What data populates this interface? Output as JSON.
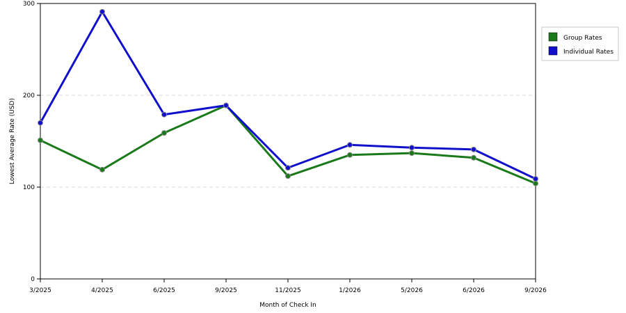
{
  "chart_data": {
    "type": "line",
    "title": "",
    "xlabel": "Month of Check In",
    "ylabel": "Lowest Average Rate (USD)",
    "categories": [
      "3/2025",
      "4/2025",
      "6/2025",
      "9/2025",
      "11/2025",
      "1/2026",
      "5/2026",
      "6/2026",
      "9/2026"
    ],
    "ylim": [
      0,
      300
    ],
    "yticks": [
      0,
      100,
      200,
      300
    ],
    "grid": true,
    "legend_position": "top-right",
    "series": [
      {
        "name": "Group Rates",
        "color": "#1a7a1a",
        "values": [
          151,
          119,
          159,
          189,
          112,
          135,
          137,
          132,
          104
        ]
      },
      {
        "name": "Individual Rates",
        "color": "#1010cc",
        "values": [
          170,
          291,
          179,
          189,
          121,
          146,
          143,
          141,
          109
        ]
      }
    ]
  }
}
